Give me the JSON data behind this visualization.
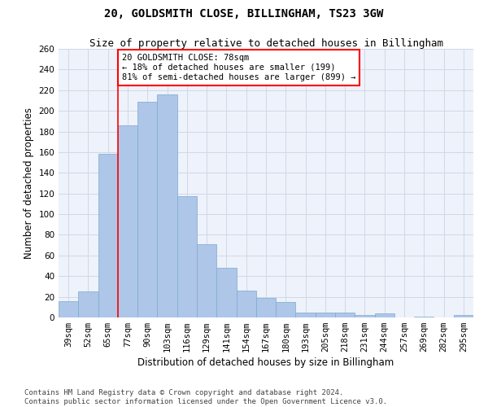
{
  "title": "20, GOLDSMITH CLOSE, BILLINGHAM, TS23 3GW",
  "subtitle": "Size of property relative to detached houses in Billingham",
  "xlabel": "Distribution of detached houses by size in Billingham",
  "ylabel": "Number of detached properties",
  "categories": [
    "39sqm",
    "52sqm",
    "65sqm",
    "77sqm",
    "90sqm",
    "103sqm",
    "116sqm",
    "129sqm",
    "141sqm",
    "154sqm",
    "167sqm",
    "180sqm",
    "193sqm",
    "205sqm",
    "218sqm",
    "231sqm",
    "244sqm",
    "257sqm",
    "269sqm",
    "282sqm",
    "295sqm"
  ],
  "values": [
    16,
    25,
    158,
    186,
    209,
    216,
    117,
    71,
    48,
    26,
    19,
    15,
    5,
    5,
    5,
    2,
    4,
    0,
    1,
    0,
    2
  ],
  "bar_color": "#aec6e8",
  "bar_edge_color": "#7aaad0",
  "grid_color": "#d0d8e8",
  "background_color": "#eef2fa",
  "annotation_text": "20 GOLDSMITH CLOSE: 78sqm\n← 18% of detached houses are smaller (199)\n81% of semi-detached houses are larger (899) →",
  "annotation_box_color": "white",
  "annotation_box_edge_color": "red",
  "vline_color": "red",
  "vline_x": 2.5,
  "ylim": [
    0,
    260
  ],
  "yticks": [
    0,
    20,
    40,
    60,
    80,
    100,
    120,
    140,
    160,
    180,
    200,
    220,
    240,
    260
  ],
  "footer_text": "Contains HM Land Registry data © Crown copyright and database right 2024.\nContains public sector information licensed under the Open Government Licence v3.0.",
  "title_fontsize": 10,
  "subtitle_fontsize": 9,
  "xlabel_fontsize": 8.5,
  "ylabel_fontsize": 8.5,
  "tick_fontsize": 7.5,
  "annotation_fontsize": 7.5,
  "footer_fontsize": 6.5
}
